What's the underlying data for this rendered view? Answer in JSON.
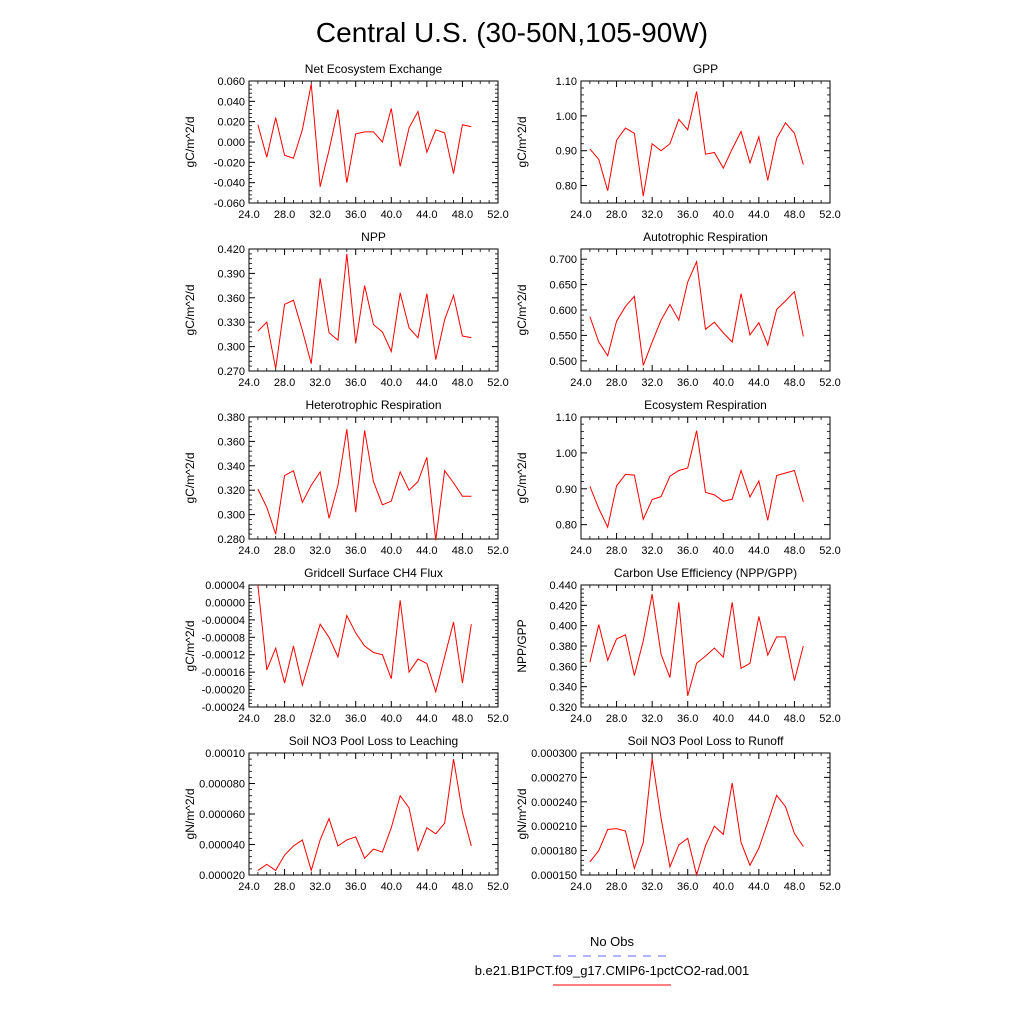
{
  "title": "Central U.S. (30-50N,105-90W)",
  "legend": {
    "obs_label": "No Obs",
    "obs_color": "#6666ff",
    "model_label": "b.e21.B1PCT.f09_g17.CMIP6-1pctCO2-rad.001",
    "model_color": "#ff0000"
  },
  "chart_data": [
    {
      "type": "line",
      "title": "Net Ecosystem Exchange",
      "ylabel": "gC/m^2/d",
      "xlim": [
        24,
        52
      ],
      "ylim": [
        -0.06,
        0.06
      ],
      "xticks": [
        24,
        28,
        32,
        36,
        40,
        44,
        48,
        52
      ],
      "xtick_labels": [
        "24.0",
        "28.0",
        "32.0",
        "36.0",
        "40.0",
        "44.0",
        "48.0",
        "52.0"
      ],
      "yticks": [
        -0.06,
        -0.04,
        -0.02,
        0,
        0.02,
        0.04,
        0.06
      ],
      "ytick_labels": [
        "-0.060",
        "-0.040",
        "-0.020",
        "0.000",
        "0.020",
        "0.040",
        "0.060"
      ],
      "x": [
        25,
        26,
        27,
        28,
        29,
        30,
        31,
        32,
        33,
        34,
        35,
        36,
        37,
        38,
        39,
        40,
        41,
        42,
        43,
        44,
        45,
        46,
        47,
        48,
        49
      ],
      "series": [
        {
          "values": [
            0.017,
            -0.015,
            0.024,
            -0.013,
            -0.016,
            0.012,
            0.057,
            -0.044,
            -0.008,
            0.032,
            -0.04,
            0.008,
            0.01,
            0.01,
            0.0,
            0.033,
            -0.024,
            0.014,
            0.03,
            -0.01,
            0.012,
            0.009,
            -0.031,
            0.017,
            0.015
          ]
        }
      ]
    },
    {
      "type": "line",
      "title": "GPP",
      "ylabel": "gC/m^2/d",
      "xlim": [
        24,
        52
      ],
      "ylim": [
        0.75,
        1.1
      ],
      "xticks": [
        24,
        28,
        32,
        36,
        40,
        44,
        48,
        52
      ],
      "xtick_labels": [
        "24.0",
        "28.0",
        "32.0",
        "36.0",
        "40.0",
        "44.0",
        "48.0",
        "52.0"
      ],
      "yticks": [
        0.8,
        0.9,
        1.0,
        1.1
      ],
      "ytick_labels": [
        "0.80",
        "0.90",
        "1.00",
        "1.10"
      ],
      "x": [
        25,
        26,
        27,
        28,
        29,
        30,
        31,
        32,
        33,
        34,
        35,
        36,
        37,
        38,
        39,
        40,
        41,
        42,
        43,
        44,
        45,
        46,
        47,
        48,
        49
      ],
      "series": [
        {
          "values": [
            0.905,
            0.875,
            0.785,
            0.93,
            0.965,
            0.95,
            0.77,
            0.92,
            0.9,
            0.92,
            0.99,
            0.96,
            1.07,
            0.89,
            0.895,
            0.85,
            0.905,
            0.955,
            0.865,
            0.94,
            0.815,
            0.935,
            0.98,
            0.95,
            0.86
          ]
        }
      ]
    },
    {
      "type": "line",
      "title": "NPP",
      "ylabel": "gC/m^2/d",
      "xlim": [
        24,
        52
      ],
      "ylim": [
        0.27,
        0.42
      ],
      "xticks": [
        24,
        28,
        32,
        36,
        40,
        44,
        48,
        52
      ],
      "xtick_labels": [
        "24.0",
        "28.0",
        "32.0",
        "36.0",
        "40.0",
        "44.0",
        "48.0",
        "52.0"
      ],
      "yticks": [
        0.27,
        0.3,
        0.33,
        0.36,
        0.39,
        0.42
      ],
      "ytick_labels": [
        "0.270",
        "0.300",
        "0.330",
        "0.360",
        "0.390",
        "0.420"
      ],
      "x": [
        25,
        26,
        27,
        28,
        29,
        30,
        31,
        32,
        33,
        34,
        35,
        36,
        37,
        38,
        39,
        40,
        41,
        42,
        43,
        44,
        45,
        46,
        47,
        48,
        49
      ],
      "series": [
        {
          "values": [
            0.319,
            0.33,
            0.273,
            0.352,
            0.357,
            0.32,
            0.279,
            0.384,
            0.317,
            0.308,
            0.414,
            0.304,
            0.375,
            0.327,
            0.318,
            0.294,
            0.366,
            0.323,
            0.311,
            0.365,
            0.284,
            0.333,
            0.363,
            0.313,
            0.311
          ]
        }
      ]
    },
    {
      "type": "line",
      "title": "Autotrophic Respiration",
      "ylabel": "gC/m^2/d",
      "xlim": [
        24,
        52
      ],
      "ylim": [
        0.48,
        0.72
      ],
      "xticks": [
        24,
        28,
        32,
        36,
        40,
        44,
        48,
        52
      ],
      "xtick_labels": [
        "24.0",
        "28.0",
        "32.0",
        "36.0",
        "40.0",
        "44.0",
        "48.0",
        "52.0"
      ],
      "yticks": [
        0.5,
        0.55,
        0.6,
        0.65,
        0.7
      ],
      "ytick_labels": [
        "0.500",
        "0.550",
        "0.600",
        "0.650",
        "0.700"
      ],
      "x": [
        25,
        26,
        27,
        28,
        29,
        30,
        31,
        32,
        33,
        34,
        35,
        36,
        37,
        38,
        39,
        40,
        41,
        42,
        43,
        44,
        45,
        46,
        47,
        48,
        49
      ],
      "series": [
        {
          "values": [
            0.587,
            0.537,
            0.51,
            0.578,
            0.607,
            0.627,
            0.491,
            0.537,
            0.58,
            0.611,
            0.58,
            0.655,
            0.695,
            0.562,
            0.576,
            0.555,
            0.537,
            0.632,
            0.551,
            0.575,
            0.531,
            0.601,
            0.618,
            0.636,
            0.548
          ]
        }
      ]
    },
    {
      "type": "line",
      "title": "Heterotrophic Respiration",
      "ylabel": "gC/m^2/d",
      "xlim": [
        24,
        52
      ],
      "ylim": [
        0.28,
        0.38
      ],
      "xticks": [
        24,
        28,
        32,
        36,
        40,
        44,
        48,
        52
      ],
      "xtick_labels": [
        "24.0",
        "28.0",
        "32.0",
        "36.0",
        "40.0",
        "44.0",
        "48.0",
        "52.0"
      ],
      "yticks": [
        0.28,
        0.3,
        0.32,
        0.34,
        0.36,
        0.38
      ],
      "ytick_labels": [
        "0.280",
        "0.300",
        "0.320",
        "0.340",
        "0.360",
        "0.380"
      ],
      "x": [
        25,
        26,
        27,
        28,
        29,
        30,
        31,
        32,
        33,
        34,
        35,
        36,
        37,
        38,
        39,
        40,
        41,
        42,
        43,
        44,
        45,
        46,
        47,
        48,
        49
      ],
      "series": [
        {
          "values": [
            0.321,
            0.306,
            0.284,
            0.332,
            0.336,
            0.31,
            0.324,
            0.335,
            0.297,
            0.324,
            0.37,
            0.302,
            0.369,
            0.327,
            0.308,
            0.311,
            0.335,
            0.32,
            0.327,
            0.347,
            0.279,
            0.336,
            0.326,
            0.315,
            0.315
          ]
        }
      ]
    },
    {
      "type": "line",
      "title": "Ecosystem Respiration",
      "ylabel": "gC/m^2/d",
      "xlim": [
        24,
        52
      ],
      "ylim": [
        0.76,
        1.1
      ],
      "xticks": [
        24,
        28,
        32,
        36,
        40,
        44,
        48,
        52
      ],
      "xtick_labels": [
        "24.0",
        "28.0",
        "32.0",
        "36.0",
        "40.0",
        "44.0",
        "48.0",
        "52.0"
      ],
      "yticks": [
        0.8,
        0.9,
        1.0,
        1.1
      ],
      "ytick_labels": [
        "0.80",
        "0.90",
        "1.00",
        "1.10"
      ],
      "x": [
        25,
        26,
        27,
        28,
        29,
        30,
        31,
        32,
        33,
        34,
        35,
        36,
        37,
        38,
        39,
        40,
        41,
        42,
        43,
        44,
        45,
        46,
        47,
        48,
        49
      ],
      "series": [
        {
          "values": [
            0.907,
            0.845,
            0.793,
            0.908,
            0.94,
            0.938,
            0.815,
            0.87,
            0.878,
            0.935,
            0.951,
            0.958,
            1.062,
            0.89,
            0.883,
            0.865,
            0.871,
            0.951,
            0.877,
            0.922,
            0.812,
            0.937,
            0.944,
            0.951,
            0.863
          ]
        }
      ]
    },
    {
      "type": "line",
      "title": "Gridcell Surface CH4 Flux",
      "ylabel": "gC/m^2/d",
      "xlim": [
        24,
        52
      ],
      "ylim": [
        -0.00024,
        4e-05
      ],
      "xticks": [
        24,
        28,
        32,
        36,
        40,
        44,
        48,
        52
      ],
      "xtick_labels": [
        "24.0",
        "28.0",
        "32.0",
        "36.0",
        "40.0",
        "44.0",
        "48.0",
        "52.0"
      ],
      "yticks": [
        -0.00024,
        -0.0002,
        -0.00016,
        -0.00012,
        -8e-05,
        -4e-05,
        0,
        4e-05
      ],
      "ytick_labels": [
        "-0.00024",
        "-0.00020",
        "-0.00016",
        "-0.00012",
        "-0.00008",
        "-0.00004",
        "0.00000",
        "0.00004"
      ],
      "x": [
        25,
        26,
        27,
        28,
        29,
        30,
        31,
        32,
        33,
        34,
        35,
        36,
        37,
        38,
        39,
        40,
        41,
        42,
        43,
        44,
        45,
        46,
        47,
        48,
        49
      ],
      "series": [
        {
          "values": [
            4e-05,
            -0.000155,
            -0.000105,
            -0.000185,
            -0.0001,
            -0.00019,
            -0.00012,
            -5e-05,
            -8e-05,
            -0.000125,
            -3e-05,
            -7e-05,
            -0.0001,
            -0.000115,
            -0.00012,
            -0.000175,
            5e-06,
            -0.00016,
            -0.00013,
            -0.00014,
            -0.000205,
            -0.000125,
            -4.5e-05,
            -0.000185,
            -5e-05
          ]
        }
      ]
    },
    {
      "type": "line",
      "title": "Carbon Use Efficiency (NPP/GPP)",
      "ylabel": "NPP/GPP",
      "xlim": [
        24,
        52
      ],
      "ylim": [
        0.32,
        0.44
      ],
      "xticks": [
        24,
        28,
        32,
        36,
        40,
        44,
        48,
        52
      ],
      "xtick_labels": [
        "24.0",
        "28.0",
        "32.0",
        "36.0",
        "40.0",
        "44.0",
        "48.0",
        "52.0"
      ],
      "yticks": [
        0.32,
        0.34,
        0.36,
        0.38,
        0.4,
        0.42,
        0.44
      ],
      "ytick_labels": [
        "0.320",
        "0.340",
        "0.360",
        "0.380",
        "0.400",
        "0.420",
        "0.440"
      ],
      "x": [
        25,
        26,
        27,
        28,
        29,
        30,
        31,
        32,
        33,
        34,
        35,
        36,
        37,
        38,
        39,
        40,
        41,
        42,
        43,
        44,
        45,
        46,
        47,
        48,
        49
      ],
      "series": [
        {
          "values": [
            0.364,
            0.401,
            0.366,
            0.387,
            0.391,
            0.351,
            0.385,
            0.431,
            0.372,
            0.349,
            0.423,
            0.331,
            0.363,
            0.37,
            0.378,
            0.369,
            0.423,
            0.358,
            0.363,
            0.409,
            0.371,
            0.389,
            0.389,
            0.346,
            0.38
          ]
        }
      ]
    },
    {
      "type": "line",
      "title": "Soil NO3 Pool Loss to Leaching",
      "ylabel": "gN/m^2/d",
      "xlim": [
        24,
        52
      ],
      "ylim": [
        2e-05,
        0.0001
      ],
      "xticks": [
        24,
        28,
        32,
        36,
        40,
        44,
        48,
        52
      ],
      "xtick_labels": [
        "24.0",
        "28.0",
        "32.0",
        "36.0",
        "40.0",
        "44.0",
        "48.0",
        "52.0"
      ],
      "yticks": [
        2e-05,
        4e-05,
        6e-05,
        8e-05,
        0.0001
      ],
      "ytick_labels": [
        "0.000020",
        "0.000040",
        "0.000060",
        "0.000080",
        "0.00010"
      ],
      "x": [
        25,
        26,
        27,
        28,
        29,
        30,
        31,
        32,
        33,
        34,
        35,
        36,
        37,
        38,
        39,
        40,
        41,
        42,
        43,
        44,
        45,
        46,
        47,
        48,
        49
      ],
      "series": [
        {
          "values": [
            2.3e-05,
            2.7e-05,
            2.3e-05,
            3.3e-05,
            3.9e-05,
            4.3e-05,
            2.3e-05,
            4.3e-05,
            5.7e-05,
            3.9e-05,
            4.3e-05,
            4.5e-05,
            3.1e-05,
            3.7e-05,
            3.5e-05,
            5.1e-05,
            7.2e-05,
            6.4e-05,
            3.6e-05,
            5.1e-05,
            4.7e-05,
            5.4e-05,
            9.6e-05,
            6.1e-05,
            3.9e-05
          ]
        }
      ]
    },
    {
      "type": "line",
      "title": "Soil NO3 Pool Loss to Runoff",
      "ylabel": "gN/m^2/d",
      "xlim": [
        24,
        52
      ],
      "ylim": [
        0.00015,
        0.0003
      ],
      "xticks": [
        24,
        28,
        32,
        36,
        40,
        44,
        48,
        52
      ],
      "xtick_labels": [
        "24.0",
        "28.0",
        "32.0",
        "36.0",
        "40.0",
        "44.0",
        "48.0",
        "52.0"
      ],
      "yticks": [
        0.00015,
        0.00018,
        0.00021,
        0.00024,
        0.00027,
        0.0003
      ],
      "ytick_labels": [
        "0.000150",
        "0.000180",
        "0.000210",
        "0.000240",
        "0.000270",
        "0.000300"
      ],
      "x": [
        25,
        26,
        27,
        28,
        29,
        30,
        31,
        32,
        33,
        34,
        35,
        36,
        37,
        38,
        39,
        40,
        41,
        42,
        43,
        44,
        45,
        46,
        47,
        48,
        49
      ],
      "series": [
        {
          "values": [
            0.000166,
            0.00018,
            0.000206,
            0.000207,
            0.000204,
            0.000158,
            0.00019,
            0.000293,
            0.00022,
            0.00016,
            0.000187,
            0.000195,
            0.00015,
            0.000186,
            0.00021,
            0.0002,
            0.000263,
            0.00019,
            0.000162,
            0.000183,
            0.000215,
            0.000248,
            0.000234,
            0.000201,
            0.000185
          ]
        }
      ]
    }
  ]
}
